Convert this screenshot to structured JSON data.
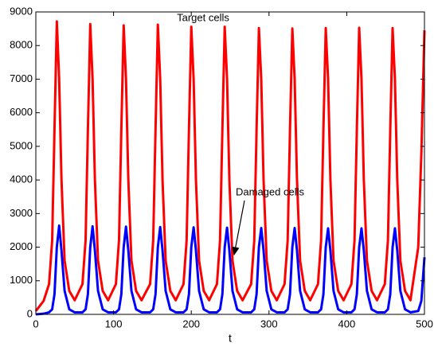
{
  "chart_data": {
    "type": "line",
    "xlabel": "t",
    "annotations": [
      "Target cells",
      "Damaged cells"
    ],
    "x": [
      0,
      10,
      17,
      21,
      24,
      27,
      30,
      33,
      37,
      43,
      50,
      60,
      64,
      67,
      70,
      73,
      76,
      80,
      86,
      93,
      103,
      107,
      110,
      113,
      116,
      119,
      123,
      129,
      136,
      147,
      151,
      154,
      157,
      160,
      163,
      167,
      173,
      180,
      190,
      194,
      197,
      200,
      203,
      206,
      210,
      216,
      223,
      233,
      237,
      240,
      243,
      246,
      249,
      253,
      259,
      266,
      277,
      281,
      284,
      287,
      290,
      293,
      297,
      303,
      310,
      320,
      324,
      327,
      330,
      333,
      336,
      340,
      346,
      353,
      363,
      367,
      370,
      373,
      376,
      379,
      383,
      389,
      396,
      406,
      410,
      413,
      416,
      419,
      422,
      426,
      432,
      439,
      449,
      453,
      456,
      459,
      462,
      465,
      469,
      475,
      482,
      492,
      496,
      500
    ],
    "series": [
      {
        "name": "Target cells",
        "color": "#ff0000",
        "values": [
          100,
          400,
          900,
          2200,
          5500,
          8720,
          7000,
          4000,
          1600,
          700,
          420,
          900,
          2200,
          5500,
          8640,
          7000,
          4000,
          1600,
          700,
          420,
          900,
          2200,
          5500,
          8600,
          7000,
          4000,
          1600,
          700,
          420,
          900,
          2200,
          5500,
          8620,
          7000,
          4000,
          1600,
          700,
          420,
          900,
          2200,
          5500,
          8560,
          7000,
          4000,
          1600,
          700,
          420,
          900,
          2200,
          5500,
          8560,
          7000,
          4000,
          1600,
          700,
          420,
          900,
          2200,
          5500,
          8520,
          7000,
          4000,
          1600,
          700,
          420,
          900,
          2200,
          5500,
          8510,
          7000,
          4000,
          1600,
          700,
          420,
          900,
          2200,
          5500,
          8520,
          7000,
          4000,
          1600,
          700,
          420,
          900,
          2200,
          5500,
          8530,
          7000,
          4000,
          1600,
          700,
          420,
          900,
          2200,
          5500,
          8520,
          7000,
          4000,
          1600,
          700,
          420,
          2000,
          4800,
          8450
        ]
      },
      {
        "name": "Damaged cells",
        "color": "#0000ff",
        "values": [
          0,
          20,
          60,
          150,
          600,
          2000,
          2640,
          1900,
          700,
          150,
          60,
          60,
          150,
          600,
          2000,
          2620,
          1900,
          700,
          150,
          60,
          60,
          150,
          600,
          2000,
          2610,
          1900,
          700,
          150,
          60,
          60,
          150,
          600,
          2000,
          2600,
          1900,
          700,
          150,
          60,
          60,
          150,
          600,
          2000,
          2590,
          1900,
          700,
          150,
          60,
          60,
          150,
          600,
          2000,
          2580,
          1900,
          700,
          150,
          60,
          60,
          150,
          600,
          2000,
          2570,
          1900,
          700,
          150,
          60,
          60,
          150,
          600,
          2000,
          2570,
          1900,
          700,
          150,
          60,
          60,
          150,
          600,
          2000,
          2560,
          1900,
          700,
          150,
          60,
          60,
          150,
          600,
          2000,
          2560,
          1900,
          700,
          150,
          60,
          60,
          150,
          600,
          2000,
          2560,
          1900,
          700,
          150,
          60,
          100,
          400,
          1700
        ]
      }
    ],
    "xlim": [
      0,
      500
    ],
    "xticks": [
      0,
      100,
      200,
      300,
      400,
      500
    ],
    "ylim": [
      0,
      9000
    ],
    "yticks": [
      0,
      1000,
      2000,
      3000,
      4000,
      5000,
      6000,
      7000,
      8000,
      9000
    ],
    "grid": false
  }
}
